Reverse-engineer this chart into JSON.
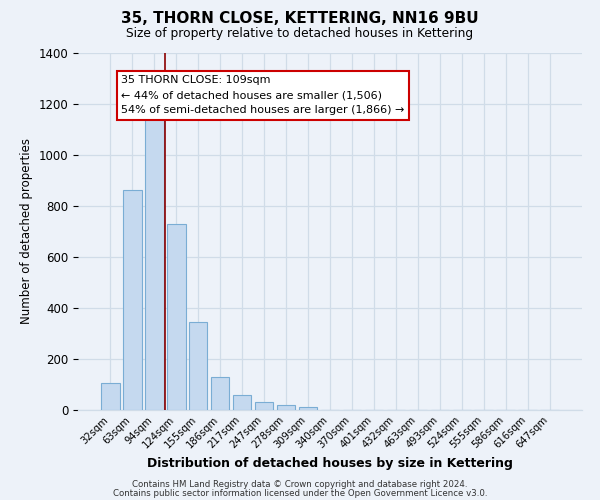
{
  "title": "35, THORN CLOSE, KETTERING, NN16 9BU",
  "subtitle": "Size of property relative to detached houses in Kettering",
  "xlabel": "Distribution of detached houses by size in Kettering",
  "ylabel": "Number of detached properties",
  "bar_color": "#c5d9ef",
  "bar_edge_color": "#7aadd4",
  "grid_color": "#d0dce8",
  "bg_color": "#edf2f9",
  "categories": [
    "32sqm",
    "63sqm",
    "94sqm",
    "124sqm",
    "155sqm",
    "186sqm",
    "217sqm",
    "247sqm",
    "278sqm",
    "309sqm",
    "340sqm",
    "370sqm",
    "401sqm",
    "432sqm",
    "463sqm",
    "493sqm",
    "524sqm",
    "555sqm",
    "586sqm",
    "616sqm",
    "647sqm"
  ],
  "values": [
    105,
    860,
    1145,
    730,
    345,
    130,
    60,
    32,
    18,
    10,
    0,
    0,
    0,
    0,
    0,
    0,
    0,
    0,
    0,
    0,
    0
  ],
  "ylim": [
    0,
    1400
  ],
  "yticks": [
    0,
    200,
    400,
    600,
    800,
    1000,
    1200,
    1400
  ],
  "vline_x_idx": 2.5,
  "vline_color": "#8b0000",
  "annotation_title": "35 THORN CLOSE: 109sqm",
  "annotation_line1": "← 44% of detached houses are smaller (1,506)",
  "annotation_line2": "54% of semi-detached houses are larger (1,866) →",
  "annotation_box_facecolor": "#ffffff",
  "annotation_box_edgecolor": "#cc0000",
  "footer1": "Contains HM Land Registry data © Crown copyright and database right 2024.",
  "footer2": "Contains public sector information licensed under the Open Government Licence v3.0."
}
